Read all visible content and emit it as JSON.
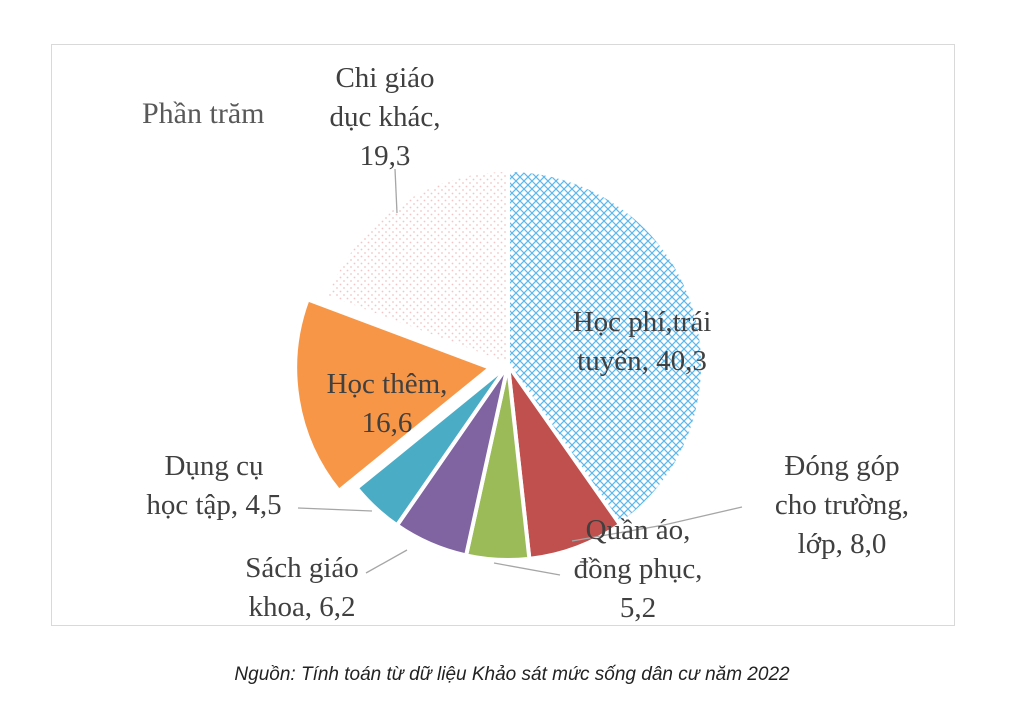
{
  "colors": {
    "hoc_phi": "#5bb8f0",
    "dong_gop": "#c0504d",
    "quan_ao": "#9bbb59",
    "sach": "#8064a2",
    "dung_cu": "#4bacc6",
    "hoc_them": "#f79646",
    "chi_khac": "#f2c6c6"
  },
  "chart_data": {
    "type": "pie",
    "title": "Phần trăm",
    "slices": [
      {
        "key": "hoc_phi",
        "label_lines": [
          "Học phí,trái",
          "tuyến, 40,3"
        ],
        "value": 40.3,
        "pattern": "crosshatch"
      },
      {
        "key": "dong_gop",
        "label_lines": [
          "Đóng góp",
          "cho trường,",
          "lớp, 8,0"
        ],
        "value": 8.0
      },
      {
        "key": "quan_ao",
        "label_lines": [
          "Quần áo,",
          "đồng phục,",
          "5,2"
        ],
        "value": 5.2
      },
      {
        "key": "sach",
        "label_lines": [
          "Sách giáo",
          "khoa, 6,2"
        ],
        "value": 6.2
      },
      {
        "key": "dung_cu",
        "label_lines": [
          "Dụng cụ",
          "học tập, 4,5"
        ],
        "value": 4.5
      },
      {
        "key": "hoc_them",
        "label_lines": [
          "Học thêm,",
          "16,6"
        ],
        "value": 16.6,
        "exploded": true
      },
      {
        "key": "chi_khac",
        "label_lines": [
          "Chi giáo",
          "dục khác,",
          "19,3"
        ],
        "value": 19.3,
        "pattern": "dots"
      }
    ]
  },
  "caption": "Nguồn: Tính toán từ dữ liệu Khảo sát mức sống dân cư năm 2022"
}
